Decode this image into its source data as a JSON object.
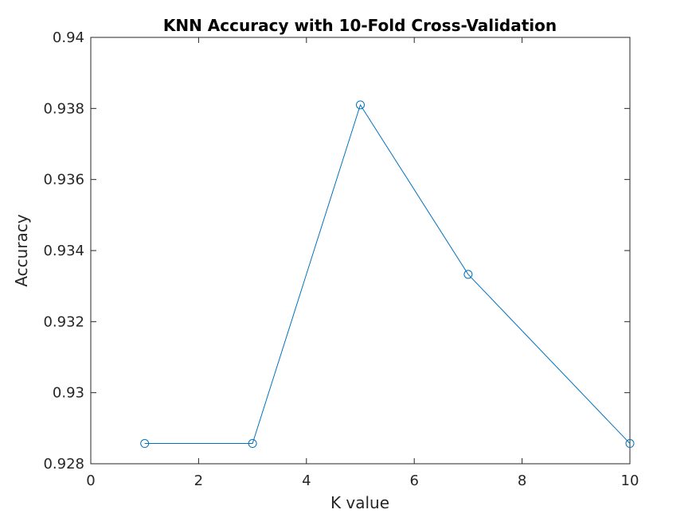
{
  "chart_data": {
    "type": "line",
    "title": "KNN Accuracy with 10-Fold Cross-Validation",
    "xlabel": "K value",
    "ylabel": "Accuracy",
    "xlim": [
      0,
      10
    ],
    "ylim": [
      0.928,
      0.94
    ],
    "x_ticks": [
      "0",
      "2",
      "4",
      "6",
      "8",
      "10"
    ],
    "y_ticks": [
      "0.928",
      "0.93",
      "0.932",
      "0.934",
      "0.936",
      "0.938",
      "0.94"
    ],
    "grid": false,
    "series": [
      {
        "x": [
          1,
          3,
          5,
          7,
          10
        ],
        "y": [
          0.92857,
          0.92857,
          0.9381,
          0.93333,
          0.92857
        ],
        "marker": "circle",
        "color": "#0072BD"
      }
    ],
    "colors": {
      "axis": "#262626",
      "line": "#0072BD",
      "background": "#ffffff"
    }
  }
}
